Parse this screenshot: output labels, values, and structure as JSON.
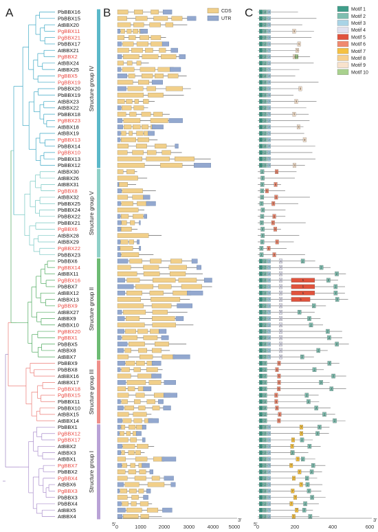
{
  "panels": {
    "a": "A",
    "b": "B",
    "c": "C"
  },
  "genes": [
    "PbBBX16",
    "PbBBX15",
    "AtBBX20",
    "PgBBX11",
    "PgBBX21",
    "PbBBX17",
    "AtBBX21",
    "PgBBX2",
    "AtBBX24",
    "AtBBX25",
    "PgBBX5",
    "PgBBX19",
    "PbBBX20",
    "PbBBX19",
    "AtBBX23",
    "AtBBX22",
    "PbBBX18",
    "PgBBX23",
    "AtBBX18",
    "AtBBX19",
    "PgBBX13",
    "PbBBX14",
    "PgBBX10",
    "PbBBX13",
    "PbBBX12",
    "AtBBX30",
    "AtBBX26",
    "AtBBX31",
    "PgBBX8",
    "AtBBX32",
    "PbBBX25",
    "PbBBX24",
    "PbBBX22",
    "PbBBX21",
    "PgBBX6",
    "AtBBX28",
    "AtBBX29",
    "PgBBX22",
    "PbBBX23",
    "PbBBX6",
    "PgBBX14",
    "AtBBX11",
    "PgBBX16",
    "PbBBX7",
    "AtBBX12",
    "AtBBX13",
    "PgBBX9",
    "AtBBX27",
    "AtBBX9",
    "AtBBX10",
    "PgBBX20",
    "PgBBX1",
    "PbBBX5",
    "AtBBX8",
    "AtBBX7",
    "PbBBX9",
    "PbBBX8",
    "AtBBX16",
    "AtBBX17",
    "PgBBX18",
    "PgBBX15",
    "PbBBX11",
    "PbBBX10",
    "AtBBX15",
    "AtBBX14",
    "PbBBX1",
    "PgBBX12",
    "PgBBX17",
    "AtBBX2",
    "AtBBX3",
    "AtBBX1",
    "PgBBX7",
    "PbBBX2",
    "PgBBX4",
    "AtBBX6",
    "PgBBX3",
    "PbBBX3",
    "PbBBX4",
    "AtBBX5",
    "AtBBX4"
  ],
  "red_genes": [
    "PgBBX11",
    "PgBBX21",
    "PgBBX2",
    "PgBBX5",
    "PgBBX19",
    "PgBBX23",
    "PgBBX13",
    "PgBBX10",
    "PgBBX8",
    "PgBBX6",
    "PgBBX22",
    "PgBBX14",
    "PgBBX16",
    "PgBBX9",
    "PgBBX20",
    "PgBBX1",
    "PgBBX18",
    "PgBBX15",
    "PgBBX12",
    "PgBBX17",
    "PgBBX7",
    "PgBBX4",
    "PgBBX3"
  ],
  "groups": [
    {
      "label": "Structure group IV",
      "start": 0,
      "end": 24,
      "color": "#5bb8c9"
    },
    {
      "label": "Structure group V",
      "start": 25,
      "end": 38,
      "color": "#8fd0c8"
    },
    {
      "label": "Structure group II",
      "start": 39,
      "end": 54,
      "color": "#6dbb73"
    },
    {
      "label": "Structure group III",
      "start": 55,
      "end": 64,
      "color": "#ef8f8a"
    },
    {
      "label": "Structure group I",
      "start": 65,
      "end": 79,
      "color": "#b9a2d6"
    }
  ],
  "legend_b": [
    {
      "label": "CDS",
      "color": "#f1cf8a"
    },
    {
      "label": "UTR",
      "color": "#93a8cf"
    }
  ],
  "axis_b": {
    "ticks": [
      "0",
      "1000",
      "2000",
      "3000",
      "4000",
      "5000"
    ],
    "start_label": "5'",
    "end_label": "3'"
  },
  "axis_c": {
    "ticks": [
      "0",
      "200",
      "400",
      "600"
    ],
    "start_label": "5'",
    "end_label": "3'"
  },
  "motifs": [
    {
      "label": "Motif 1",
      "color": "#3f9e8a"
    },
    {
      "label": "Motif 2",
      "color": "#7fbeb0"
    },
    {
      "label": "Motif 3",
      "color": "#a9d4e6"
    },
    {
      "label": "Motif 4",
      "color": "#e1e1ef"
    },
    {
      "label": "Motif 5",
      "color": "#e0533d"
    },
    {
      "label": "Motif 6",
      "color": "#f08a70"
    },
    {
      "label": "Motif 7",
      "color": "#f5c142"
    },
    {
      "label": "Motif 8",
      "color": "#f7d08e"
    },
    {
      "label": "Motif 9",
      "color": "#f8e2cc"
    },
    {
      "label": "Motif 10",
      "color": "#a9d18e"
    }
  ]
}
